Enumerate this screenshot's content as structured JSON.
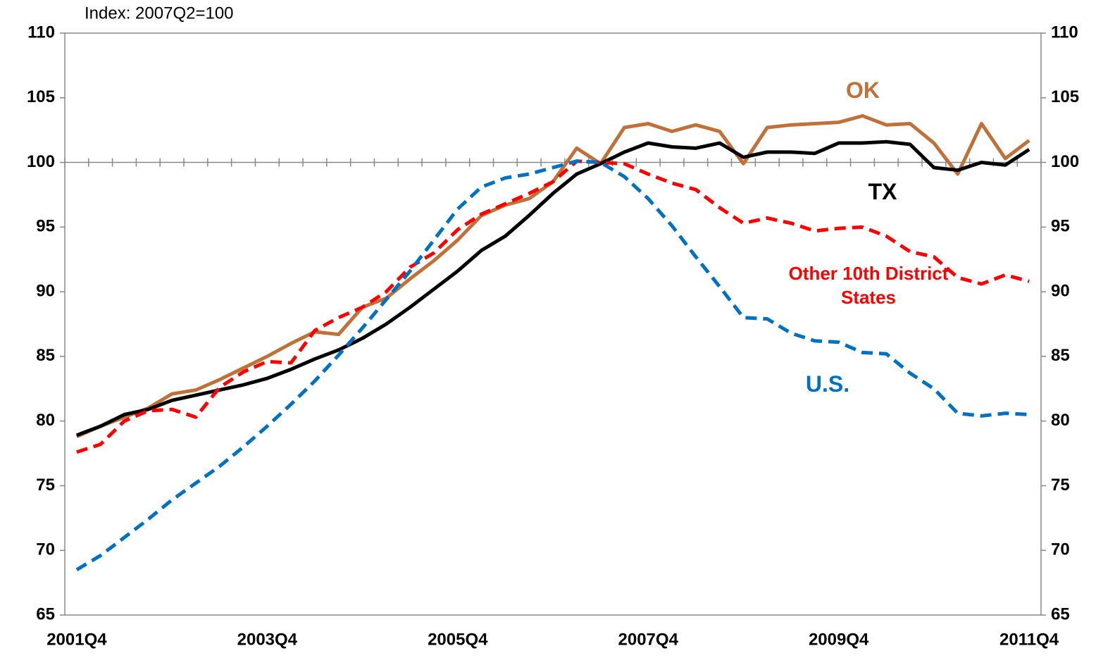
{
  "chart_data": {
    "type": "line",
    "y_label": "Index: 2007Q2=100",
    "categories": [
      "2001Q4",
      null,
      null,
      null,
      null,
      null,
      null,
      null,
      "2003Q4",
      null,
      null,
      null,
      null,
      null,
      null,
      null,
      "2005Q4",
      null,
      null,
      null,
      null,
      null,
      null,
      null,
      "2007Q4",
      null,
      null,
      null,
      null,
      null,
      null,
      null,
      "2009Q4",
      null,
      null,
      null,
      null,
      null,
      null,
      null,
      "2011Q4"
    ],
    "series": [
      {
        "name": "OK",
        "color": "#c0713a",
        "dash": false,
        "values": [
          78.8,
          79.6,
          80.3,
          81.0,
          82.1,
          82.4,
          83.2,
          84.1,
          85.0,
          86.0,
          86.9,
          86.7,
          88.8,
          89.5,
          91.0,
          92.4,
          94.0,
          95.9,
          96.7,
          97.2,
          98.5,
          101.1,
          99.9,
          102.7,
          103.0,
          102.4,
          102.9,
          102.4,
          99.9,
          102.7,
          102.9,
          103.0,
          103.1,
          103.6,
          102.9,
          103.0,
          101.5,
          99.1,
          103.0,
          100.3,
          101.7
        ]
      },
      {
        "name": "TX",
        "color": "#000000",
        "dash": false,
        "values": [
          78.9,
          79.6,
          80.5,
          80.9,
          81.6,
          82.0,
          82.4,
          82.8,
          83.3,
          84.0,
          84.8,
          85.5,
          86.4,
          87.5,
          88.8,
          90.2,
          91.6,
          93.2,
          94.3,
          95.9,
          97.6,
          99.1,
          99.9,
          100.8,
          101.5,
          101.2,
          101.1,
          101.5,
          100.4,
          100.8,
          100.8,
          100.7,
          101.5,
          101.5,
          101.6,
          101.4,
          99.6,
          99.4,
          100.0,
          99.8,
          101.0
        ]
      },
      {
        "name": "Other 10th District States",
        "color": "#ff0000",
        "dash": true,
        "values": [
          77.6,
          78.2,
          80.0,
          80.8,
          80.9,
          80.3,
          82.6,
          83.8,
          84.6,
          84.5,
          87.0,
          88.0,
          88.8,
          90.0,
          91.9,
          93.0,
          94.8,
          96.0,
          96.8,
          97.6,
          98.5,
          100.1,
          100.0,
          99.9,
          99.1,
          98.4,
          97.9,
          96.5,
          95.3,
          95.7,
          95.3,
          94.7,
          94.9,
          95.0,
          94.3,
          93.1,
          92.7,
          91.1,
          90.6,
          91.3,
          90.8
        ]
      },
      {
        "name": "U.S.",
        "color": "#0070c0",
        "dash": true,
        "values": [
          68.5,
          69.6,
          71.0,
          72.4,
          73.9,
          75.2,
          76.5,
          78.0,
          79.6,
          81.3,
          83.1,
          85.1,
          87.2,
          89.4,
          91.6,
          94.0,
          96.4,
          98.1,
          98.8,
          99.1,
          99.6,
          100.1,
          100.0,
          98.9,
          97.2,
          95.1,
          92.7,
          90.4,
          88.0,
          87.9,
          86.8,
          86.2,
          86.1,
          85.3,
          85.2,
          83.7,
          82.5,
          80.6,
          80.4,
          80.6,
          80.5
        ]
      }
    ],
    "ylim": [
      65,
      110
    ],
    "yticks": [
      65,
      70,
      75,
      80,
      85,
      90,
      95,
      100,
      105,
      110
    ],
    "y2lim": [
      65,
      110
    ],
    "y2ticks": [
      65,
      70,
      75,
      80,
      85,
      90,
      95,
      100,
      105,
      110
    ],
    "x_axis_crosses": 100,
    "grid": false
  }
}
